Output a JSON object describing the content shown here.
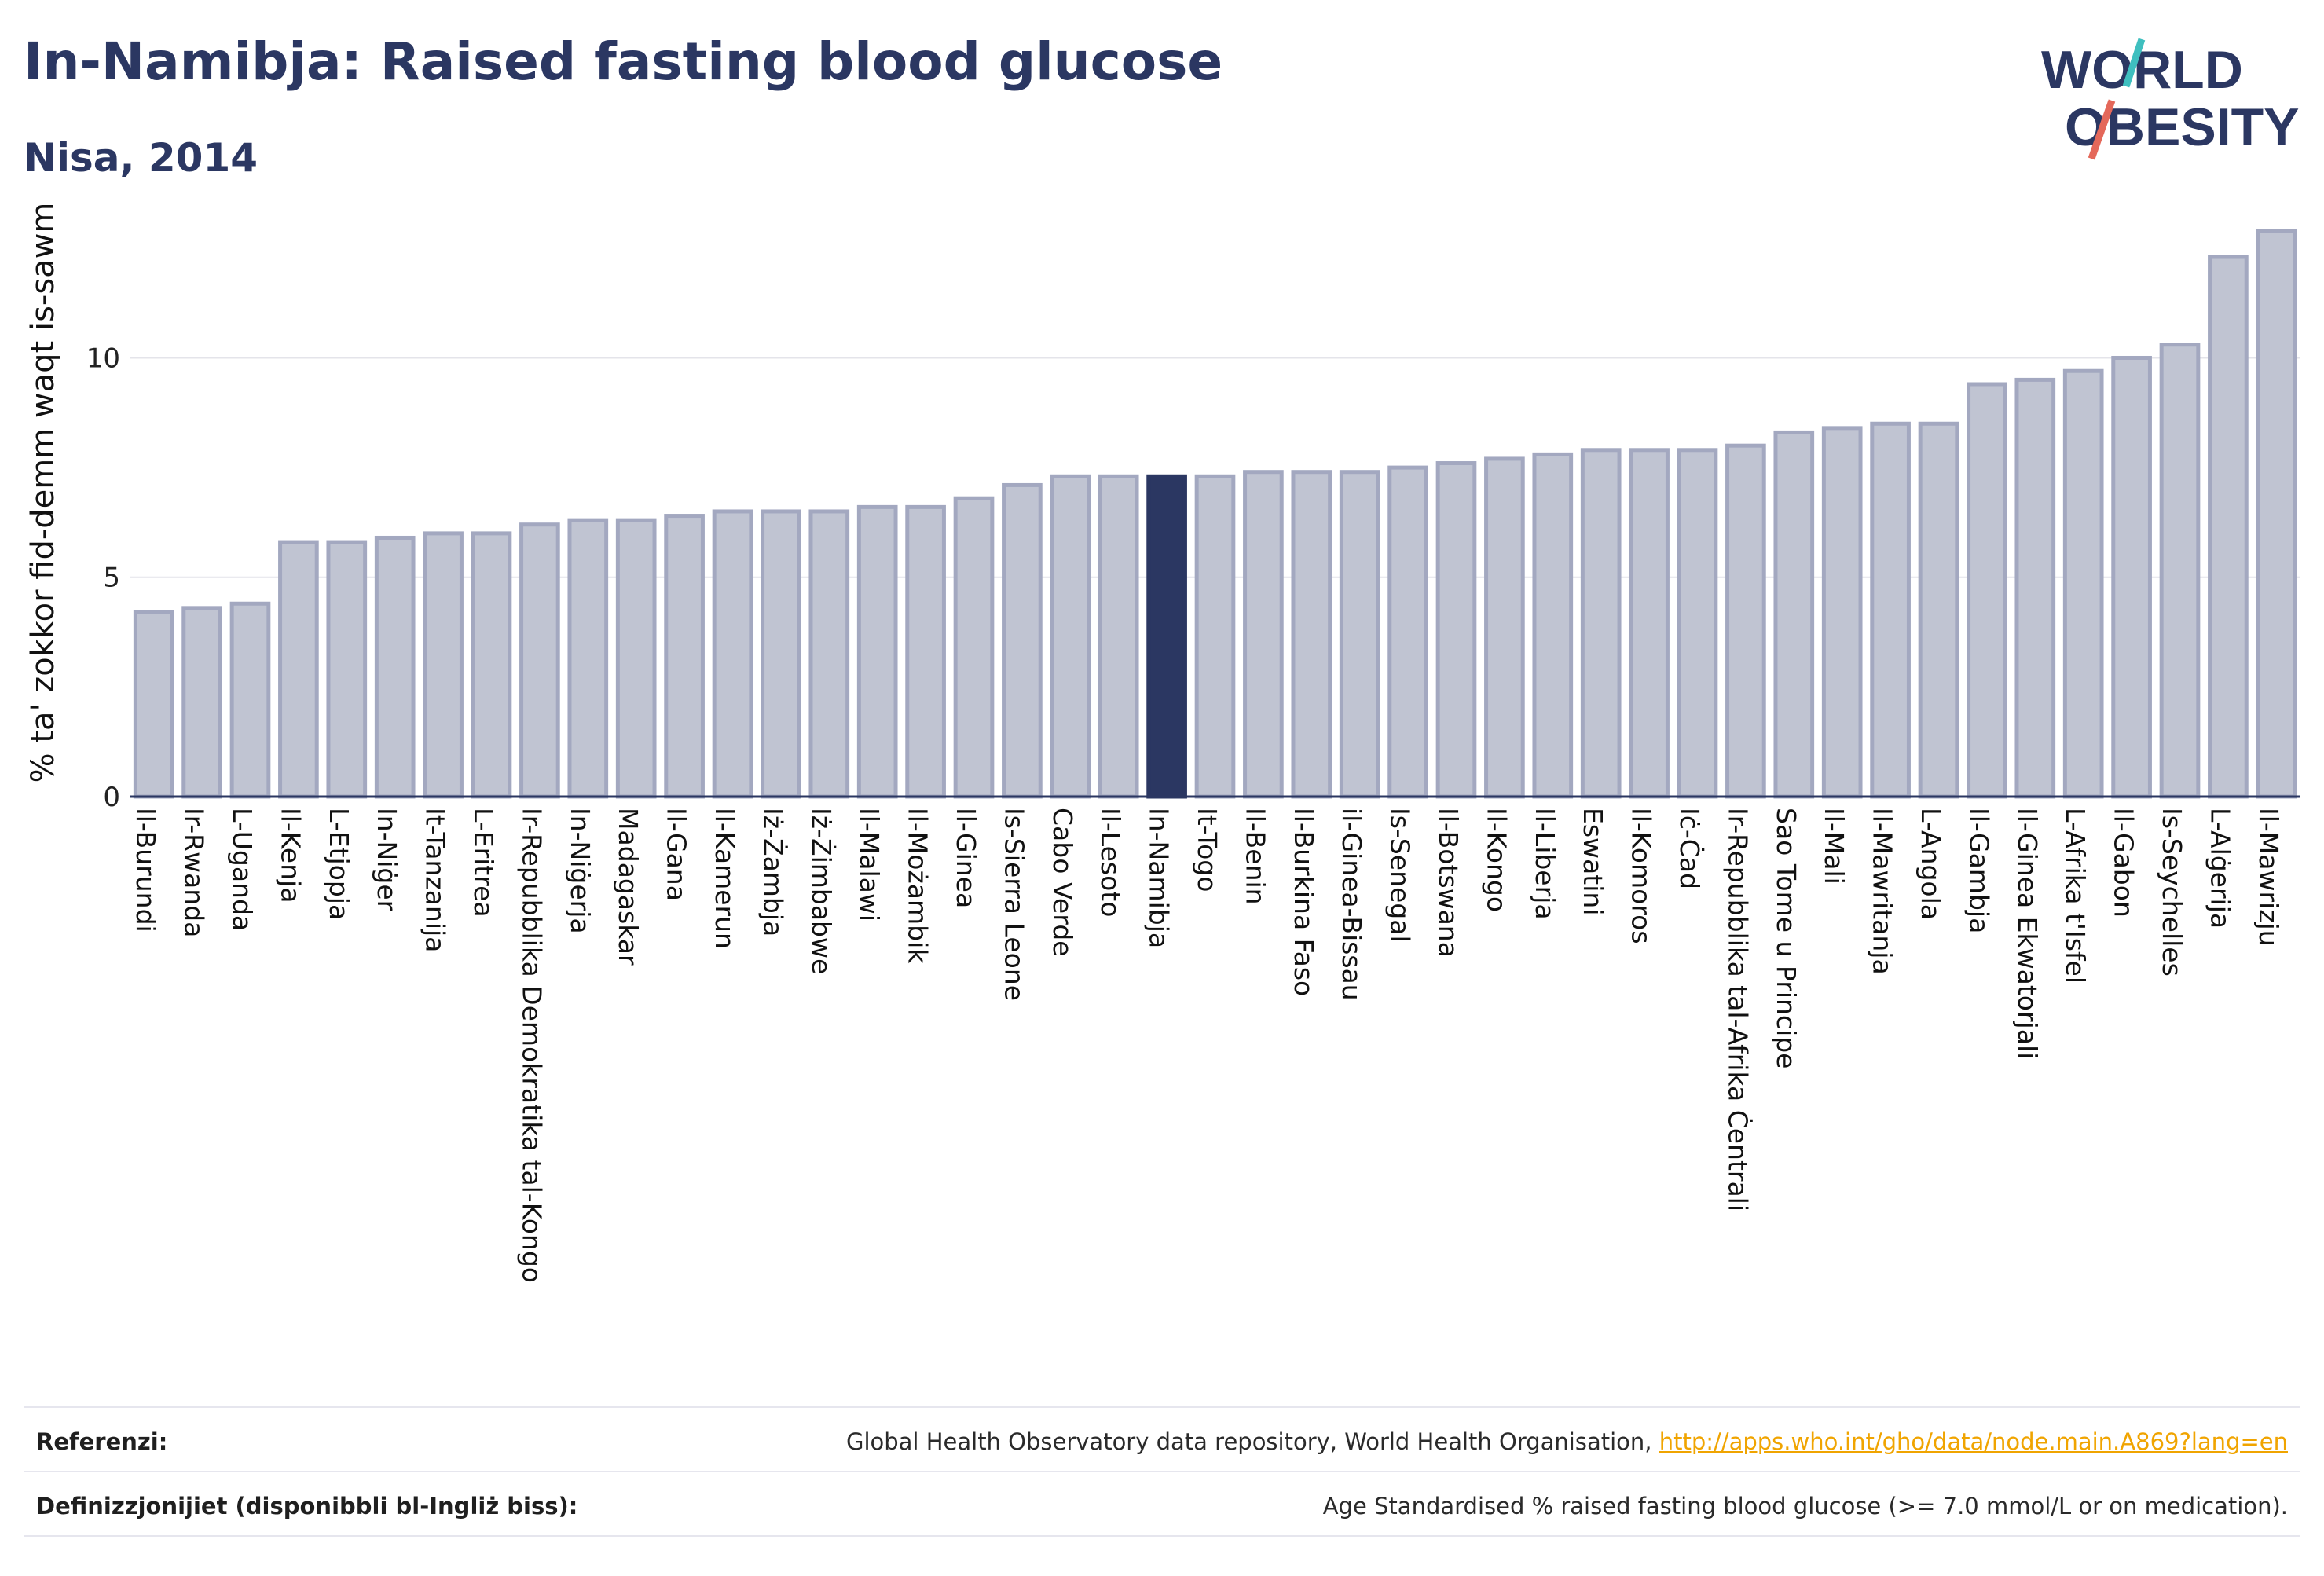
{
  "header": {
    "title": "In-Namibja: Raised fasting blood glucose",
    "subtitle": "Nisa, 2014"
  },
  "logo": {
    "line1": "WORLD",
    "line2": "OBESITY",
    "colors": {
      "text": "#2b3762",
      "slash_teal": "#3fbfbf",
      "slash_red": "#e4685a"
    }
  },
  "chart_data": {
    "type": "bar",
    "ylabel": "% ta' zokkor fid-demm waqt is-sawm",
    "ylim": [
      0,
      13.5
    ],
    "yticks": [
      0,
      5,
      10
    ],
    "grid": true,
    "highlight": "In-Namibja",
    "colors": {
      "bar": "#c0c4d2",
      "bar_edge": "#a3a8c0",
      "highlight": "#2b3762",
      "grid": "#e4e4ea",
      "axis": "#2b3762"
    },
    "categories": [
      "Il-Burundi",
      "Ir-Rwanda",
      "L-Uganda",
      "Il-Kenja",
      "L-Etjopja",
      "In-Niġer",
      "It-Tanzanija",
      "L-Eritrea",
      "Ir-Repubblika Demokratika tal-Kongo",
      "In-Niġerja",
      "Madagaskar",
      "Il-Gana",
      "Il-Kamerun",
      "Iż-Żambja",
      "Iż-Żimbabwe",
      "Il-Malawi",
      "Il-Możambik",
      "Il-Ginea",
      "Is-Sierra Leone",
      "Cabo Verde",
      "Il-Lesoto",
      "In-Namibja",
      "It-Togo",
      "Il-Benin",
      "Il-Burkina Faso",
      "il-Ginea-Bissau",
      "Is-Senegal",
      "Il-Botswana",
      "Il-Kongo",
      "Il-Liberja",
      "Eswatini",
      "Il-Komoros",
      "Iċ-Ċad",
      "Ir-Repubblika tal-Afrika Ċentrali",
      "Sao Tome u Principe",
      "Il-Mali",
      "Il-Mawritanja",
      "L-Angola",
      "Il-Gambja",
      "Il-Ginea Ekwatorjali",
      "L-Afrika t'Isfel",
      "Il-Gabon",
      "Is-Seychelles",
      "L-Alġerija",
      "Il-Mawrizju"
    ],
    "values": [
      4.2,
      4.3,
      4.4,
      5.8,
      5.8,
      5.9,
      6.0,
      6.0,
      6.2,
      6.3,
      6.3,
      6.4,
      6.5,
      6.5,
      6.5,
      6.6,
      6.6,
      6.8,
      7.1,
      7.3,
      7.3,
      7.3,
      7.3,
      7.4,
      7.4,
      7.4,
      7.5,
      7.6,
      7.7,
      7.8,
      7.9,
      7.9,
      7.9,
      8.0,
      8.3,
      8.4,
      8.5,
      8.5,
      9.4,
      9.5,
      9.7,
      10.0,
      10.3,
      12.3,
      12.9
    ]
  },
  "footer": {
    "references_label": "Referenzi:",
    "references_text": "Global Health Observatory data repository, World Health Organisation, ",
    "references_link": "http://apps.who.int/gho/data/node.main.A869?lang=en",
    "definitions_label": "Definizzjonijiet (disponibbli bl-Ingliż biss):",
    "definitions_text": "Age Standardised % raised fasting blood glucose (>= 7.0 mmol/L or on medication)."
  }
}
